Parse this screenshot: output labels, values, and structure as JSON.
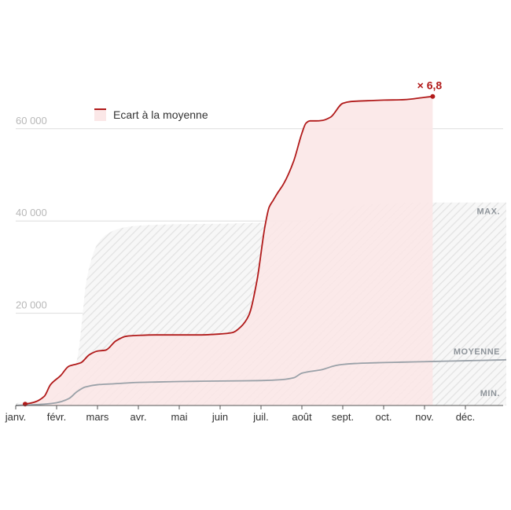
{
  "chart_data": {
    "type": "area",
    "title": "",
    "xlabel": "",
    "ylabel": "",
    "x_ticks": [
      "janv.",
      "févr.",
      "mars",
      "avr.",
      "mai",
      "juin",
      "juil.",
      "août",
      "sept.",
      "oct.",
      "nov.",
      "déc."
    ],
    "x_range_months": [
      0,
      12
    ],
    "ylim": [
      0,
      70000
    ],
    "y_ticks": [
      20000,
      40000,
      60000
    ],
    "y_tick_labels": [
      "20 000",
      "40 000",
      "60 000"
    ],
    "grid": "horizontal",
    "legend": {
      "position": "top-left",
      "label": "Ecart à la moyenne"
    },
    "end_annotation": "× 6,8",
    "band_labels": {
      "max": "MAX.",
      "mean": "MOYENNE",
      "min": "MIN."
    },
    "colors": {
      "series": "#b11a1a",
      "series_fill": "#fbe7e7",
      "mean_line": "#9aa1a8",
      "band_hatch": "#e6e6e6",
      "grid": "#dddddd",
      "axis": "#555555"
    },
    "series": [
      {
        "name": "",
        "role": "current-year",
        "x": [
          0.23,
          0.45,
          0.7,
          0.85,
          1.1,
          1.3,
          1.5,
          1.6,
          1.8,
          2.0,
          2.2,
          2.45,
          2.7,
          3.0,
          3.4,
          3.8,
          4.5,
          5.0,
          5.3,
          5.5,
          5.7,
          5.9,
          6.1,
          6.2,
          6.3,
          6.4,
          6.55,
          6.8,
          7.0,
          7.1,
          7.2,
          7.35,
          7.5,
          7.7,
          8.0,
          8.2,
          8.4,
          8.7,
          9.0,
          9.5,
          10.0,
          10.2
        ],
        "values": [
          300,
          700,
          2000,
          4500,
          6500,
          8500,
          9000,
          9300,
          11000,
          11800,
          12000,
          14000,
          15000,
          15200,
          15300,
          15300,
          15300,
          15500,
          15800,
          17000,
          19500,
          27000,
          39000,
          43000,
          44500,
          46000,
          48000,
          53000,
          59000,
          61200,
          61700,
          61700,
          61800,
          62500,
          65500,
          65900,
          66000,
          66100,
          66200,
          66300,
          66800,
          67000
        ]
      },
      {
        "name": "",
        "role": "average",
        "x": [
          0.0,
          0.7,
          1.0,
          1.3,
          1.5,
          1.7,
          2.0,
          2.4,
          3.0,
          3.5,
          4.0,
          5.0,
          6.0,
          6.5,
          6.8,
          7.0,
          7.5,
          7.8,
          8.0,
          8.3,
          8.6,
          9.0,
          9.5,
          10.0,
          10.5,
          11.0,
          11.5,
          12.0
        ],
        "values": [
          0,
          300,
          600,
          1500,
          3000,
          4000,
          4500,
          4700,
          5000,
          5100,
          5200,
          5300,
          5400,
          5600,
          6000,
          7000,
          7800,
          8600,
          8900,
          9100,
          9200,
          9300,
          9400,
          9500,
          9600,
          9700,
          9800,
          9900
        ]
      },
      {
        "name": "",
        "role": "historical-max",
        "x": [
          0.0,
          0.8,
          1.2,
          1.5,
          1.75,
          2.0,
          2.3,
          2.6,
          3.0,
          3.5,
          4.0,
          5.0,
          6.0,
          7.0,
          7.5,
          8.0,
          8.5,
          9.0,
          10.0,
          11.0,
          12.0
        ],
        "values": [
          500,
          1500,
          4000,
          10000,
          28000,
          35000,
          37500,
          38500,
          39000,
          39200,
          39300,
          39400,
          39600,
          40000,
          41000,
          42500,
          43500,
          43800,
          44000,
          44000,
          44000
        ]
      },
      {
        "name": "",
        "role": "historical-min",
        "x": [
          0.0,
          6.0,
          7.0,
          8.0,
          9.0,
          10.0,
          12.0
        ],
        "values": [
          0,
          0,
          0,
          0,
          0,
          0,
          0
        ]
      }
    ]
  }
}
